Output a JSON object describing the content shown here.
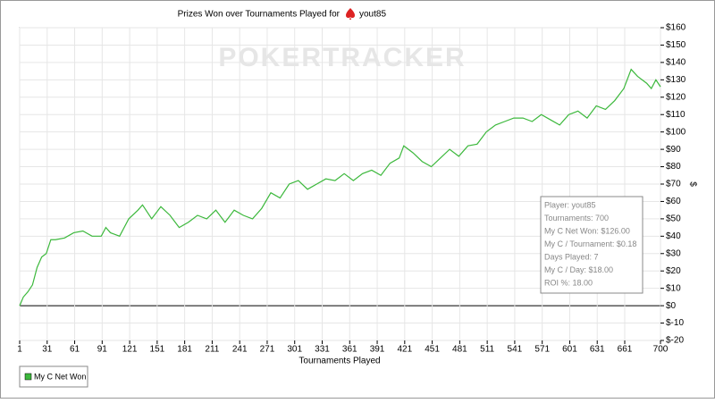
{
  "chart_data": {
    "type": "line",
    "title": "Prizes Won over Tournaments Played for",
    "player": "yout85",
    "watermark": "POKERTRACKER",
    "x_label": "Tournaments Played",
    "y_label": "$",
    "x": [
      1,
      5,
      10,
      15,
      20,
      25,
      30,
      35,
      40,
      50,
      60,
      70,
      80,
      90,
      95,
      100,
      110,
      120,
      130,
      135,
      145,
      155,
      165,
      175,
      185,
      195,
      205,
      215,
      225,
      235,
      245,
      255,
      265,
      275,
      285,
      295,
      305,
      315,
      325,
      335,
      345,
      355,
      365,
      375,
      385,
      395,
      405,
      415,
      420,
      430,
      440,
      450,
      460,
      470,
      480,
      490,
      500,
      510,
      520,
      530,
      540,
      550,
      560,
      570,
      580,
      590,
      600,
      610,
      620,
      630,
      640,
      650,
      660,
      668,
      675,
      685,
      690,
      695,
      700
    ],
    "series": [
      {
        "name": "My C Net Won",
        "color": "#3cb83c",
        "values": [
          0,
          5,
          8,
          12,
          22,
          28,
          30,
          38,
          38,
          39,
          42,
          43,
          40,
          40,
          45,
          42,
          40,
          50,
          55,
          58,
          50,
          57,
          52,
          45,
          48,
          52,
          50,
          55,
          48,
          55,
          52,
          50,
          56,
          65,
          62,
          70,
          72,
          67,
          70,
          73,
          72,
          76,
          72,
          76,
          78,
          75,
          82,
          85,
          92,
          88,
          83,
          80,
          85,
          90,
          86,
          92,
          93,
          100,
          104,
          106,
          108,
          108,
          106,
          110,
          107,
          104,
          110,
          112,
          108,
          115,
          113,
          118,
          125,
          136,
          132,
          128,
          125,
          130,
          126
        ]
      }
    ],
    "xlim": [
      1,
      700
    ],
    "xticks": [
      1,
      31,
      61,
      91,
      121,
      151,
      181,
      211,
      241,
      271,
      301,
      331,
      361,
      391,
      421,
      451,
      481,
      511,
      541,
      571,
      601,
      631,
      661,
      700
    ],
    "ylim": [
      -20,
      160
    ],
    "yticks": [
      {
        "value": -20,
        "label": "$-20"
      },
      {
        "value": -10,
        "label": "$-10"
      },
      {
        "value": 0,
        "label": "$0"
      },
      {
        "value": 10,
        "label": "$10"
      },
      {
        "value": 20,
        "label": "$20"
      },
      {
        "value": 30,
        "label": "$30"
      },
      {
        "value": 40,
        "label": "$40"
      },
      {
        "value": 50,
        "label": "$50"
      },
      {
        "value": 60,
        "label": "$60"
      },
      {
        "value": 70,
        "label": "$70"
      },
      {
        "value": 80,
        "label": "$80"
      },
      {
        "value": 90,
        "label": "$90"
      },
      {
        "value": 100,
        "label": "$100"
      },
      {
        "value": 110,
        "label": "$110"
      },
      {
        "value": 120,
        "label": "$120"
      },
      {
        "value": 130,
        "label": "$130"
      },
      {
        "value": 140,
        "label": "$140"
      },
      {
        "value": 150,
        "label": "$150"
      },
      {
        "value": 160,
        "label": "$160"
      }
    ],
    "grid": true,
    "legend": "bottom-left",
    "stats": [
      "Player: yout85",
      "Tournaments: 700",
      "My C Net Won: $126.00",
      "My C / Tournament: $0.18",
      "Days Played: 7",
      "My C / Day: $18.00",
      "ROI %: 18.00"
    ]
  }
}
